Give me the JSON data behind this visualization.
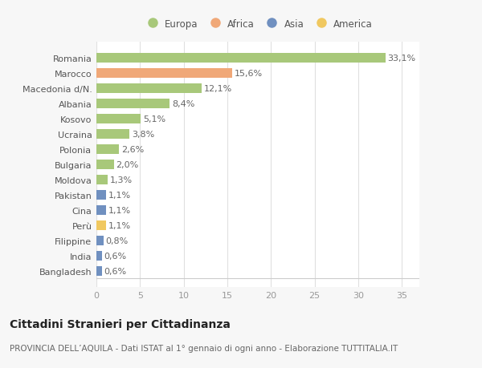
{
  "categories": [
    "Romania",
    "Marocco",
    "Macedonia d/N.",
    "Albania",
    "Kosovo",
    "Ucraina",
    "Polonia",
    "Bulgaria",
    "Moldova",
    "Pakistan",
    "Cina",
    "Perù",
    "Filippine",
    "India",
    "Bangladesh"
  ],
  "values": [
    33.1,
    15.6,
    12.1,
    8.4,
    5.1,
    3.8,
    2.6,
    2.0,
    1.3,
    1.1,
    1.1,
    1.1,
    0.8,
    0.6,
    0.6
  ],
  "labels": [
    "33,1%",
    "15,6%",
    "12,1%",
    "8,4%",
    "5,1%",
    "3,8%",
    "2,6%",
    "2,0%",
    "1,3%",
    "1,1%",
    "1,1%",
    "1,1%",
    "0,8%",
    "0,6%",
    "0,6%"
  ],
  "colors": [
    "#a8c87a",
    "#f0a878",
    "#a8c87a",
    "#a8c87a",
    "#a8c87a",
    "#a8c87a",
    "#a8c87a",
    "#a8c87a",
    "#a8c87a",
    "#7090c0",
    "#7090c0",
    "#f0c860",
    "#7090c0",
    "#7090c0",
    "#7090c0"
  ],
  "legend_labels": [
    "Europa",
    "Africa",
    "Asia",
    "America"
  ],
  "legend_colors": [
    "#a8c87a",
    "#f0a878",
    "#7090c0",
    "#f0c860"
  ],
  "title": "Cittadini Stranieri per Cittadinanza",
  "subtitle": "PROVINCIA DELL’AQUILA - Dati ISTAT al 1° gennaio di ogni anno - Elaborazione TUTTITALIA.IT",
  "xlim": [
    0,
    37
  ],
  "xticks": [
    0,
    5,
    10,
    15,
    20,
    25,
    30,
    35
  ],
  "background_color": "#f7f7f7",
  "plot_bg_color": "#ffffff",
  "grid_color": "#e0e0e0",
  "bar_height": 0.65,
  "label_fontsize": 8,
  "tick_fontsize": 8,
  "title_fontsize": 10,
  "subtitle_fontsize": 7.5
}
